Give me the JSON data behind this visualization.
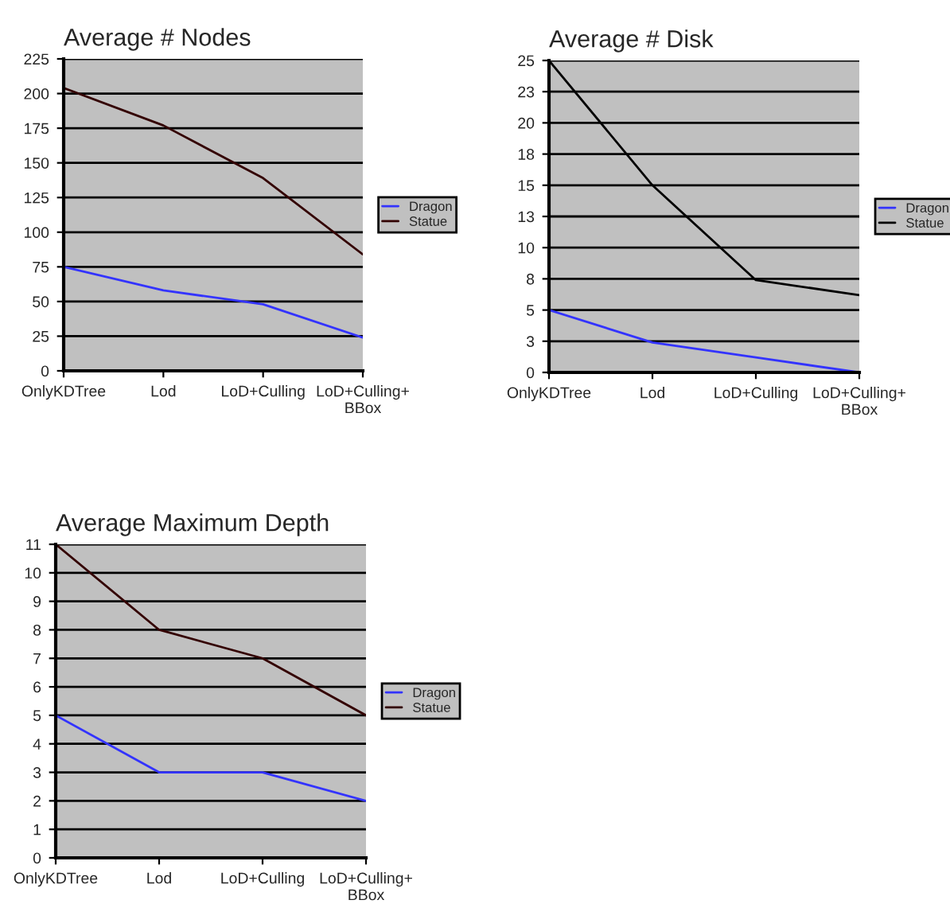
{
  "chart_data": [
    {
      "type": "line",
      "title": "Average # Nodes",
      "categories": [
        "OnlyKDTree",
        "Lod",
        "LoD+Culling",
        "LoD+Culling+\nBBox"
      ],
      "series": [
        {
          "name": "Dragon",
          "color": "#3333ff",
          "values": [
            75,
            58,
            48,
            24
          ]
        },
        {
          "name": "Statue",
          "color": "#330000",
          "values": [
            204,
            177,
            139,
            84
          ]
        }
      ],
      "ylim": [
        0,
        225
      ],
      "yticks": [
        0,
        25,
        50,
        75,
        100,
        125,
        150,
        175,
        200,
        225
      ],
      "grid": "y",
      "legend": "right"
    },
    {
      "type": "line",
      "title": "Average # Disk",
      "categories": [
        "OnlyKDTree",
        "Lod",
        "LoD+Culling",
        "LoD+Culling+\nBBox"
      ],
      "series": [
        {
          "name": "Dragon",
          "color": "#3333ff",
          "values": [
            5,
            2.4,
            1.2,
            0
          ]
        },
        {
          "name": "Statue",
          "color": "#000000",
          "values": [
            25,
            15,
            7.4,
            6.2
          ]
        }
      ],
      "ylim": [
        0,
        25
      ],
      "yticks": [
        0,
        {
          "value": 2.5,
          "label": "3"
        },
        5,
        {
          "value": 7.5,
          "label": "8"
        },
        10,
        {
          "value": 12.5,
          "label": "13"
        },
        15,
        {
          "value": 17.5,
          "label": "18"
        },
        20,
        {
          "value": 22.5,
          "label": "23"
        },
        25
      ],
      "grid": "y",
      "legend": "right"
    },
    {
      "type": "line",
      "title": "Average Maximum Depth",
      "categories": [
        "OnlyKDTree",
        "Lod",
        "LoD+Culling",
        "LoD+Culling+\nBBox"
      ],
      "series": [
        {
          "name": "Dragon",
          "color": "#3333ff",
          "values": [
            5,
            3,
            3,
            2
          ]
        },
        {
          "name": "Statue",
          "color": "#330000",
          "values": [
            11,
            8,
            7,
            5
          ]
        }
      ],
      "ylim": [
        0,
        11
      ],
      "yticks": [
        0,
        1,
        2,
        3,
        4,
        5,
        6,
        7,
        8,
        9,
        10,
        11
      ],
      "grid": "y",
      "legend": "right"
    }
  ]
}
